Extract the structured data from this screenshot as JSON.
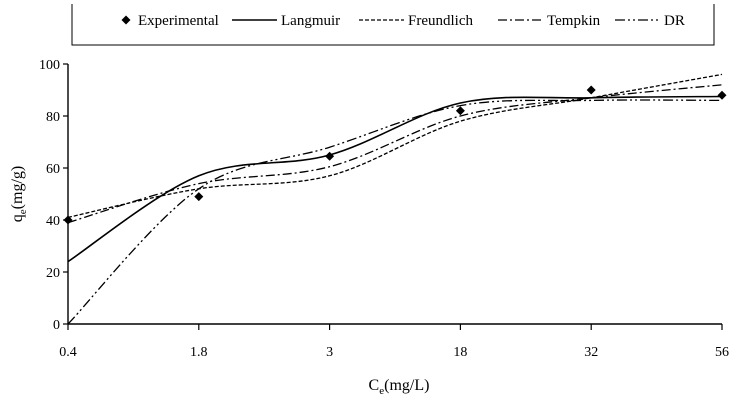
{
  "chart_data": {
    "type": "line",
    "title": "",
    "xlabel": "Ce(mg/L)",
    "xlabel_parts": {
      "main": "C",
      "sub": "e",
      "rest": "(mg/L)"
    },
    "ylabel": "qe(mg/g)",
    "ylabel_parts": {
      "main": "q",
      "sub": "e",
      "rest": "(mg/g)"
    },
    "x_tick_labels": [
      "0.4",
      "1.8",
      "3",
      "18",
      "32",
      "56"
    ],
    "y_tick_labels": [
      "0",
      "20",
      "40",
      "60",
      "80",
      "100"
    ],
    "ylim": [
      0,
      100
    ],
    "grid": false,
    "legend_position": "top",
    "series": [
      {
        "name": "Experimental",
        "style": "markers",
        "x": [
          "0.4",
          "1.8",
          "3",
          "18",
          "32",
          "56"
        ],
        "values": [
          40,
          49,
          64.5,
          82,
          90,
          88
        ]
      },
      {
        "name": "Langmuir",
        "style": "solid",
        "x": [
          "0.4",
          "1.8",
          "3",
          "18",
          "32",
          "56"
        ],
        "values": [
          24,
          57,
          65,
          85,
          87,
          87.5
        ]
      },
      {
        "name": "Freundlich",
        "style": "dashed",
        "x": [
          "0.4",
          "1.8",
          "3",
          "18",
          "32",
          "56"
        ],
        "values": [
          41,
          52,
          57,
          78,
          87,
          96
        ]
      },
      {
        "name": "Tempkin",
        "style": "dashdot",
        "x": [
          "0.4",
          "1.8",
          "3",
          "18",
          "32",
          "56"
        ],
        "values": [
          39,
          54,
          60.5,
          80,
          87,
          92
        ]
      },
      {
        "name": "DR",
        "style": "dashdotdot",
        "x": [
          "0.4",
          "1.8",
          "3",
          "18",
          "32",
          "56"
        ],
        "values": [
          0,
          52,
          68,
          84,
          86,
          86
        ]
      }
    ]
  }
}
